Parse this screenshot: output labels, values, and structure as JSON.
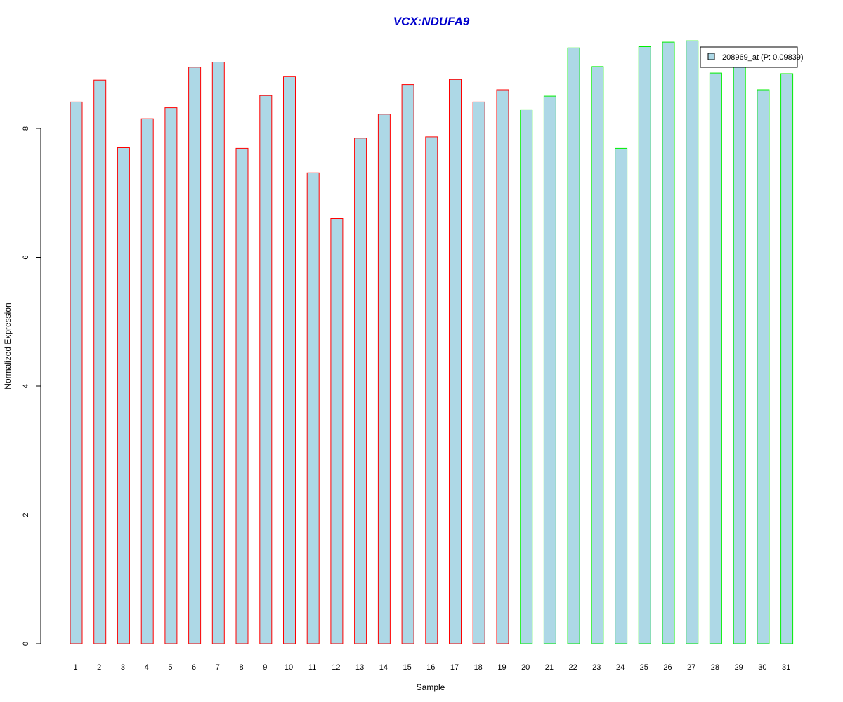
{
  "chart_data": {
    "type": "bar",
    "title": "VCX:NDUFA9",
    "xlabel": "Sample",
    "ylabel": "Normalized Expression",
    "ylim": [
      0,
      9.5
    ],
    "yticks": [
      0,
      2,
      4,
      6,
      8
    ],
    "categories": [
      "1",
      "2",
      "3",
      "4",
      "5",
      "6",
      "7",
      "8",
      "9",
      "10",
      "11",
      "12",
      "13",
      "14",
      "15",
      "16",
      "17",
      "18",
      "19",
      "20",
      "21",
      "22",
      "23",
      "24",
      "25",
      "26",
      "27",
      "28",
      "29",
      "30",
      "31"
    ],
    "series": [
      {
        "name": "208969_at (P: 0.09839)",
        "values": [
          8.41,
          8.75,
          7.7,
          8.15,
          8.32,
          8.95,
          9.03,
          7.69,
          8.51,
          8.81,
          7.31,
          6.6,
          7.85,
          8.22,
          8.68,
          7.87,
          8.76,
          8.41,
          8.6,
          8.29,
          8.5,
          9.25,
          8.96,
          7.69,
          9.27,
          9.34,
          9.36,
          8.86,
          8.98,
          8.6,
          8.85
        ]
      }
    ],
    "groups": [
      {
        "from": 1,
        "to": 19,
        "border_color": "#ff0000"
      },
      {
        "from": 20,
        "to": 31,
        "border_color": "#00ee00"
      }
    ],
    "bar_fill": "#add8e6",
    "title_color": "#0000cc",
    "grid": false,
    "legend_position": "top-right"
  }
}
